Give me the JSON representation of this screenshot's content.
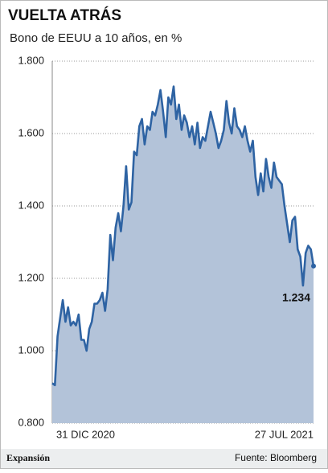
{
  "chart_data": {
    "type": "area",
    "title": "VUELTA ATRÁS",
    "subtitle": "Bono de EEUU a 10 años, en %",
    "brand": "Expansión",
    "source": "Fuente: Bloomberg",
    "color": "#2e63a3",
    "fill": "#b3c3d9",
    "grid": true,
    "ylim": [
      0.8,
      1.8
    ],
    "yticks": [
      {
        "value": 0.8,
        "label": "0.800"
      },
      {
        "value": 1.0,
        "label": "1.000"
      },
      {
        "value": 1.2,
        "label": "1.200"
      },
      {
        "value": 1.4,
        "label": "1.400"
      },
      {
        "value": 1.6,
        "label": "1.600"
      },
      {
        "value": 1.8,
        "label": "1.800"
      }
    ],
    "categories": [
      "31 DIC 2020",
      null,
      null,
      null,
      null,
      null,
      null,
      null,
      null,
      null,
      null,
      null,
      null,
      null,
      null,
      null,
      null,
      null,
      null,
      null,
      null,
      null,
      null,
      null,
      null,
      null,
      null,
      null,
      null,
      null,
      null,
      null,
      null,
      null,
      null,
      null,
      null,
      null,
      null,
      null,
      null,
      null,
      null,
      null,
      null,
      null,
      null,
      null,
      null,
      null,
      null,
      null,
      null,
      null,
      null,
      null,
      null,
      null,
      null,
      null,
      null,
      null,
      null,
      null,
      null,
      null,
      null,
      null,
      null,
      null,
      null,
      null,
      null,
      null,
      null,
      null,
      null,
      null,
      null,
      null,
      null,
      null,
      null,
      null,
      null,
      null,
      null,
      null,
      null,
      null,
      null,
      null,
      null,
      null,
      null,
      null,
      null,
      null,
      null,
      "27 JUL 2021"
    ],
    "values": [
      0.91,
      0.905,
      1.04,
      1.09,
      1.14,
      1.08,
      1.12,
      1.07,
      1.08,
      1.07,
      1.1,
      1.03,
      1.03,
      1.0,
      1.06,
      1.08,
      1.13,
      1.13,
      1.14,
      1.16,
      1.11,
      1.17,
      1.32,
      1.25,
      1.34,
      1.38,
      1.33,
      1.4,
      1.51,
      1.39,
      1.41,
      1.55,
      1.54,
      1.62,
      1.64,
      1.57,
      1.62,
      1.61,
      1.66,
      1.65,
      1.68,
      1.72,
      1.66,
      1.59,
      1.7,
      1.68,
      1.73,
      1.64,
      1.68,
      1.61,
      1.65,
      1.63,
      1.59,
      1.62,
      1.57,
      1.63,
      1.56,
      1.59,
      1.58,
      1.62,
      1.66,
      1.63,
      1.6,
      1.56,
      1.58,
      1.61,
      1.69,
      1.63,
      1.6,
      1.67,
      1.62,
      1.61,
      1.59,
      1.62,
      1.58,
      1.55,
      1.58,
      1.48,
      1.43,
      1.49,
      1.44,
      1.53,
      1.48,
      1.45,
      1.52,
      1.48,
      1.47,
      1.46,
      1.4,
      1.35,
      1.3,
      1.36,
      1.37,
      1.28,
      1.26,
      1.18,
      1.27,
      1.29,
      1.28,
      1.234
    ]
  }
}
